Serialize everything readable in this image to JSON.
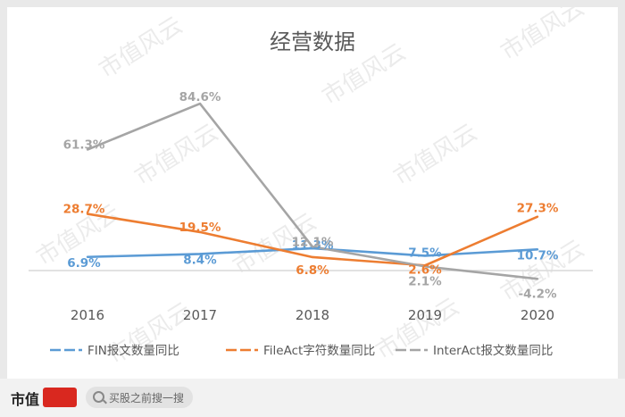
{
  "chart_data": {
    "type": "line",
    "title": "经营数据",
    "categories": [
      "2016",
      "2017",
      "2018",
      "2019",
      "2020"
    ],
    "ylim": [
      -10,
      95
    ],
    "grid": false,
    "legend_position": "bottom",
    "series": [
      {
        "name": "FIN报文数量同比",
        "color": "#5b9bd5",
        "values": [
          6.9,
          8.4,
          11.3,
          7.5,
          10.7
        ],
        "labels": [
          "6.9%",
          "8.4%",
          "11.3%",
          "7.5%",
          "10.7%"
        ]
      },
      {
        "name": "FileAct字符数量同比",
        "color": "#ed7d31",
        "values": [
          28.7,
          19.5,
          6.8,
          2.6,
          27.3
        ],
        "labels": [
          "28.7%",
          "19.5%",
          "6.8%",
          "2.6%",
          "27.3%"
        ]
      },
      {
        "name": "InterAct报文数量同比",
        "color": "#a5a5a5",
        "values": [
          61.3,
          84.6,
          12.1,
          2.1,
          -4.2
        ],
        "labels": [
          "61.3%",
          "84.6%",
          "12.1%",
          "2.1%",
          "-4.2%"
        ]
      }
    ]
  },
  "watermark": "市值风云",
  "footer": {
    "logo": "市值",
    "search_placeholder": "买股之前搜一搜"
  }
}
